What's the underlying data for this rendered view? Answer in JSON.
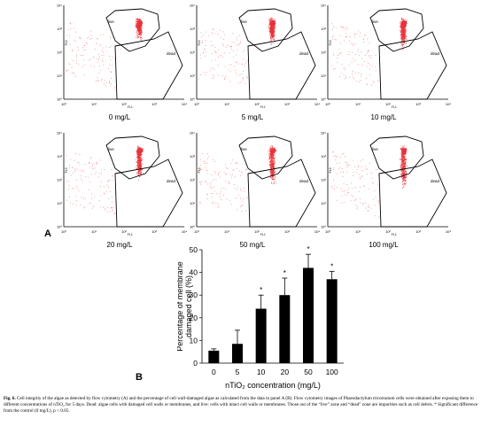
{
  "figure": {
    "panel_a_label": "A",
    "panel_b_label": "B",
    "flow_panels": [
      {
        "concentration": "0 mg/L",
        "live_label": "live",
        "dead_label": "dead"
      },
      {
        "concentration": "5 mg/L",
        "live_label": "live",
        "dead_label": "dead"
      },
      {
        "concentration": "10 mg/L",
        "live_label": "live",
        "dead_label": "dead"
      },
      {
        "concentration": "20 mg/L",
        "live_label": "live",
        "dead_label": "dead"
      },
      {
        "concentration": "50 mg/L",
        "live_label": "live",
        "dead_label": "dead"
      },
      {
        "concentration": "100 mg/L",
        "live_label": "live",
        "dead_label": "dead"
      }
    ],
    "flow_axis_ticks": [
      "10⁰",
      "10¹",
      "10²",
      "10³",
      "10⁴"
    ],
    "flow_x_label": "FL1",
    "flow_y_label": "FL3",
    "caption": {
      "fig_number": "Fig. 6.",
      "text": " Cell integrity of the algae as detected by flow cytometry (A) and the percentage of cell wall-damaged algae as calculated from the data in panel A (B). Flow cytometry images of Phaeodactylum tricornutum cells were obtained after exposing them to different concentrations of nTiO₂ for 5 days. Dead: algae cells with damaged cell walls or membranes, and live: cells with intact cell walls or membranes. Those out of the “live” zone and “dead” zone are impurities such as cell debris. * Significant difference from the control (0 mg/L), p < 0.05."
    }
  },
  "chart_data": {
    "type": "bar",
    "categories": [
      "0",
      "5",
      "10",
      "20",
      "50",
      "100"
    ],
    "values": [
      5.5,
      8.5,
      24,
      30,
      42,
      37
    ],
    "errors": [
      0.8,
      6,
      6,
      7.5,
      6,
      3.5
    ],
    "significant": [
      false,
      false,
      true,
      true,
      true,
      true
    ],
    "significance_marker": "*",
    "xlabel": "nTiO₂ concentration (mg/L)",
    "ylabel_line1": "Percentage of membrane",
    "ylabel_line2": "damaged cell (%)",
    "ylim": [
      0,
      50
    ],
    "yticks": [
      0,
      10,
      20,
      30,
      40,
      50
    ],
    "bar_color": "#000000"
  }
}
